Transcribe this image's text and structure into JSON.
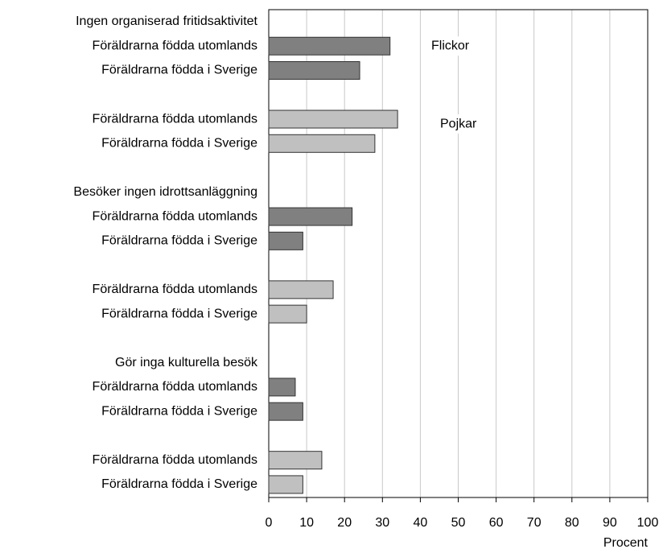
{
  "chart_data": {
    "type": "bar",
    "orientation": "horizontal",
    "categories": [
      "Ingen organiserad fritidsaktivitet",
      "Föräldrarna födda utomlands",
      "Föräldrarna födda i Sverige",
      null,
      "Föräldrarna födda utomlands",
      "Föräldrarna födda i Sverige",
      null,
      "Besöker ingen idrottsanläggning",
      "Föräldrarna födda utomlands",
      "Föräldrarna födda i Sverige",
      null,
      "Föräldrarna födda utomlands",
      "Föräldrarna födda i Sverige",
      null,
      "Gör inga kulturella besök",
      "Föräldrarna födda utomlands",
      "Föräldrarna födda i Sverige",
      null,
      "Föräldrarna födda utomlands",
      "Föräldrarna födda i Sverige"
    ],
    "series": [
      {
        "name": "Flickor",
        "color": "#808080",
        "values": [
          null,
          32,
          24,
          null,
          null,
          null,
          null,
          null,
          22,
          9,
          null,
          null,
          null,
          null,
          null,
          7,
          9,
          null,
          null,
          null
        ]
      },
      {
        "name": "Pojkar",
        "color": "#c0c0c0",
        "values": [
          null,
          null,
          null,
          null,
          34,
          28,
          null,
          null,
          null,
          null,
          null,
          17,
          10,
          null,
          null,
          null,
          null,
          null,
          14,
          9
        ]
      }
    ],
    "xlabel": "Procent",
    "xlim": [
      0,
      100
    ],
    "xticks": [
      0,
      10,
      20,
      30,
      40,
      50,
      60,
      70,
      80,
      90,
      100
    ],
    "grid": true
  }
}
